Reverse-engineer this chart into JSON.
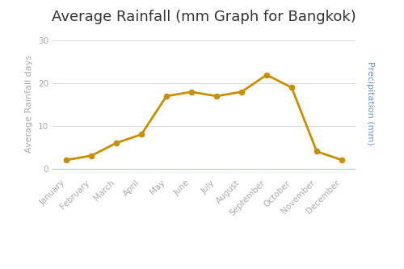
{
  "title": "Average Rainfall (mm Graph for Bangkok)",
  "months": [
    "January",
    "February",
    "March",
    "April",
    "May",
    "June",
    "July",
    "August",
    "September",
    "October",
    "November",
    "December"
  ],
  "rainfall_days": [
    2,
    3,
    6,
    8,
    17,
    18,
    17,
    18,
    22,
    19,
    4,
    2
  ],
  "ylabel_left": "Average Rainfall days",
  "ylabel_right": "Precipitation (mm)",
  "ylim": [
    -1.5,
    32
  ],
  "yticks": [
    0,
    10,
    20,
    30
  ],
  "line_color": "#c89000",
  "marker_color": "#c89000",
  "background_color": "#ffffff",
  "grid_color": "#dddddd",
  "title_fontsize": 13,
  "axis_label_fontsize": 8,
  "tick_fontsize": 7.5,
  "legend_precipitation_color": "#c0c0c0",
  "legend_label_precipitation": "Precipitation (mm)",
  "legend_label_days": "Average Rainfall Days",
  "zero_line_color": "#aaccee",
  "right_ylabel_color": "#6699cc"
}
